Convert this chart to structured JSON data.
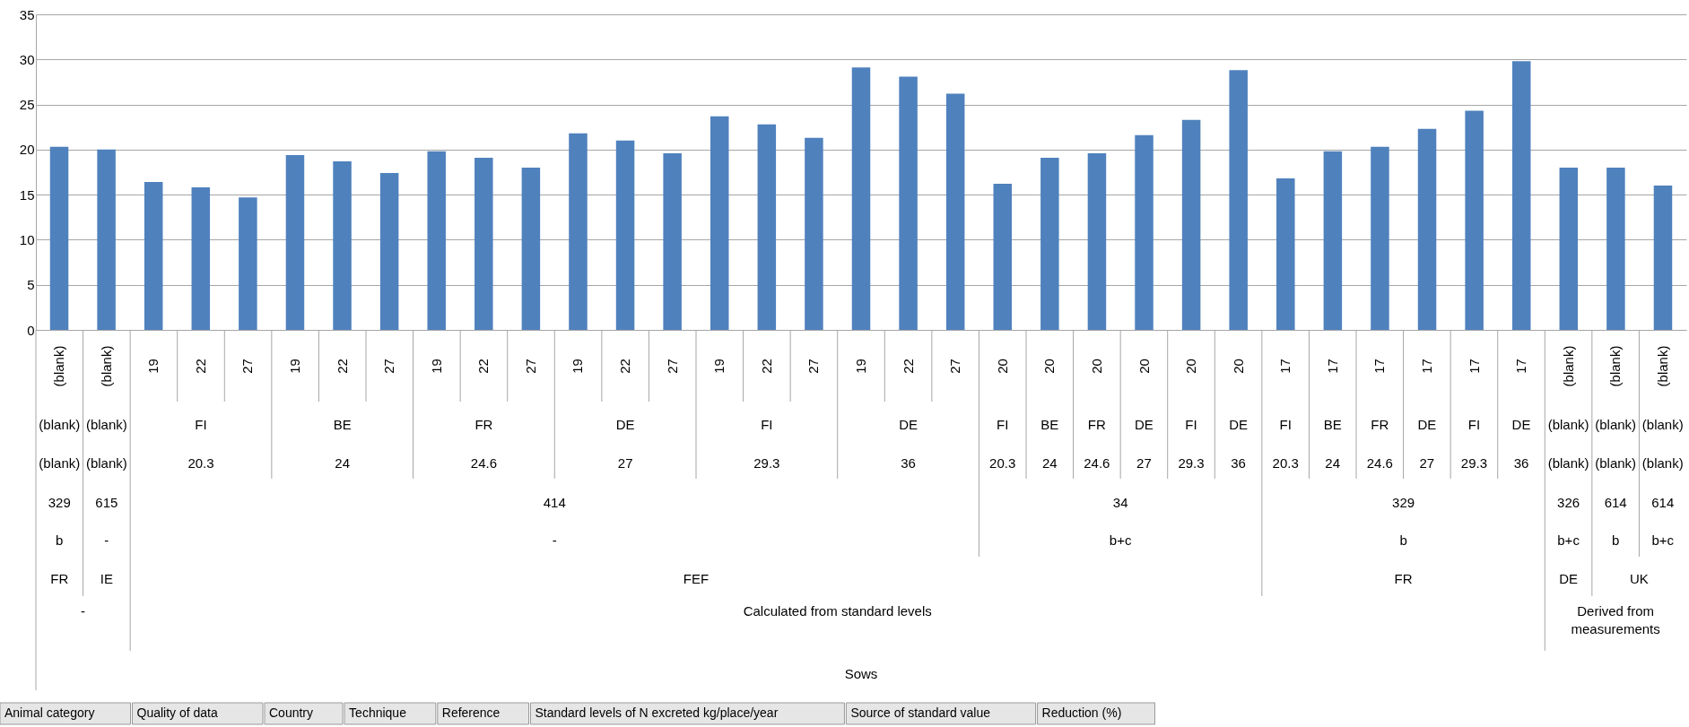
{
  "chart_data": {
    "type": "bar",
    "categories": [
      "(blank)",
      "(blank)",
      "19",
      "22",
      "27",
      "19",
      "22",
      "27",
      "19",
      "22",
      "27",
      "19",
      "22",
      "27",
      "19",
      "22",
      "27",
      "19",
      "22",
      "27",
      "20",
      "20",
      "20",
      "20",
      "20",
      "20",
      "17",
      "17",
      "17",
      "17",
      "17",
      "17",
      "(blank)",
      "(blank)",
      "(blank)"
    ],
    "values": [
      20.3,
      20.0,
      16.4,
      15.8,
      14.7,
      19.4,
      18.7,
      17.4,
      19.8,
      19.1,
      18.0,
      21.8,
      21.0,
      19.6,
      23.7,
      22.8,
      21.3,
      29.1,
      28.1,
      26.2,
      16.2,
      19.1,
      19.6,
      21.6,
      23.3,
      28.8,
      16.8,
      19.8,
      20.3,
      22.3,
      24.3,
      29.8,
      18.0,
      18.0,
      16.0
    ],
    "color": "#4f81bd",
    "ylim": [
      0,
      35
    ],
    "yticks": [
      0,
      5,
      10,
      15,
      20,
      25,
      30,
      35
    ],
    "grid": "y",
    "annotations": [
      "(blank)",
      "(blank)",
      "FI",
      "BE",
      "FR",
      "DE",
      "FI",
      "DE",
      "FI",
      "BE",
      "FR",
      "DE",
      "FI",
      "DE",
      "FI",
      "BE",
      "FR",
      "DE",
      "FI",
      "DE",
      "(blank)",
      "(blank)",
      "(blank)",
      "(blank)",
      "(blank)",
      "20.3",
      "24",
      "24.6",
      "27",
      "29.3",
      "36",
      "20.3",
      "24",
      "24.6",
      "27",
      "29.3",
      "36",
      "20.3",
      "24",
      "24.6",
      "27",
      "29.3",
      "36",
      "(blank)",
      "(blank)",
      "(blank)",
      "329",
      "615",
      "414",
      "34",
      "329",
      "326",
      "614",
      "614",
      "b",
      "-",
      "-",
      "b+c",
      "b",
      "b+c",
      "b",
      "b+c",
      "FR",
      "IE",
      "FEF",
      "FR",
      "DE",
      "UK",
      "-",
      "Calculated from standard levels",
      "Derived from measurements",
      "Sows",
      "Animal category",
      "Quality of data",
      "Country",
      "Technique",
      "Reference",
      "Standard levels of N excreted kg/place/year",
      "Source of standard value",
      "Reduction (%)"
    ]
  }
}
